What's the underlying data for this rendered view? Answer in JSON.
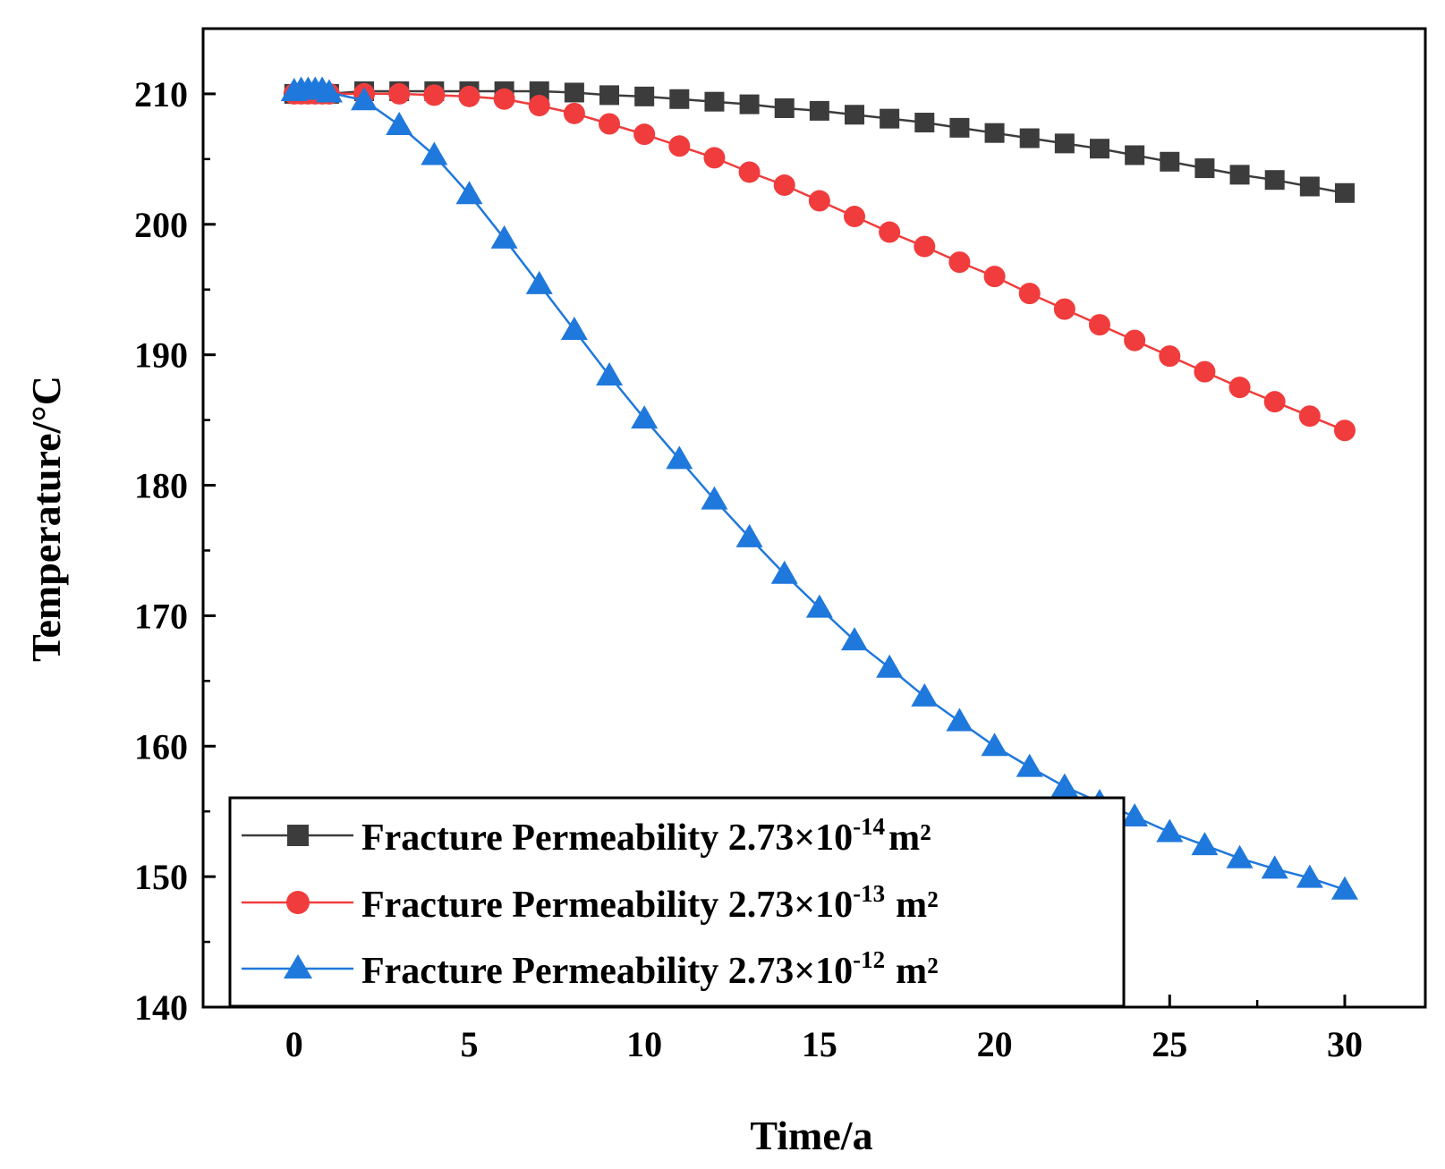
{
  "chart_data": {
    "type": "line",
    "title": "",
    "xlabel": "Time/a",
    "ylabel": "Temperature/°C",
    "xlim": [
      -2.6,
      32.3
    ],
    "ylim": [
      140,
      215
    ],
    "xticks": [
      0,
      5,
      10,
      15,
      20,
      25,
      30
    ],
    "yticks": [
      140,
      150,
      160,
      170,
      180,
      190,
      200,
      210
    ],
    "legend_position": "bottom-left",
    "series": [
      {
        "name": "Fracture Permeability 2.73×10-14 m²",
        "legend": {
          "prefix": "Fracture Permeability 2.73×10",
          "exp": "-14",
          "unit": "m²"
        },
        "color": "#3c3c3c",
        "marker": "square",
        "x": [
          0,
          0.2,
          0.4,
          0.6,
          0.8,
          1,
          2,
          3,
          4,
          5,
          6,
          7,
          8,
          9,
          10,
          11,
          12,
          13,
          14,
          15,
          16,
          17,
          18,
          19,
          20,
          21,
          22,
          23,
          24,
          25,
          26,
          27,
          28,
          29,
          30
        ],
        "y": [
          210,
          210,
          210,
          210,
          210,
          210,
          210.2,
          210.2,
          210.2,
          210.2,
          210.2,
          210.2,
          210.1,
          209.9,
          209.8,
          209.6,
          209.4,
          209.2,
          208.9,
          208.7,
          208.4,
          208.1,
          207.8,
          207.4,
          207.0,
          206.6,
          206.2,
          205.8,
          205.3,
          204.8,
          204.3,
          203.8,
          203.4,
          202.9,
          202.4
        ]
      },
      {
        "name": "Fracture Permeability 2.73×10-13 m²",
        "legend": {
          "prefix": "Fracture Permeability 2.73×10",
          "exp": "-13",
          "unit": "m²"
        },
        "color": "#f03c3c",
        "marker": "circle",
        "x": [
          0,
          0.2,
          0.4,
          0.6,
          0.8,
          1,
          2,
          3,
          4,
          5,
          6,
          7,
          8,
          9,
          10,
          11,
          12,
          13,
          14,
          15,
          16,
          17,
          18,
          19,
          20,
          21,
          22,
          23,
          24,
          25,
          26,
          27,
          28,
          29,
          30
        ],
        "y": [
          210,
          210,
          210,
          210,
          210,
          210,
          210.0,
          210.0,
          209.9,
          209.8,
          209.6,
          209.1,
          208.5,
          207.7,
          206.9,
          206.0,
          205.1,
          204.0,
          203.0,
          201.8,
          200.6,
          199.4,
          198.3,
          197.1,
          196.0,
          194.7,
          193.5,
          192.3,
          191.1,
          189.9,
          188.7,
          187.5,
          186.4,
          185.3,
          184.2
        ]
      },
      {
        "name": "Fracture Permeability 2.73×10-12 m²",
        "legend": {
          "prefix": "Fracture Permeability 2.73×10",
          "exp": "-12",
          "unit": "m²"
        },
        "color": "#1f78dc",
        "marker": "triangle",
        "x": [
          0,
          0.2,
          0.4,
          0.6,
          0.8,
          1,
          2,
          3,
          4,
          5,
          6,
          7,
          8,
          9,
          10,
          11,
          12,
          13,
          14,
          15,
          16,
          17,
          18,
          19,
          20,
          21,
          22,
          23,
          24,
          25,
          26,
          27,
          28,
          29,
          30
        ],
        "y": [
          210.2,
          210.3,
          210.3,
          210.3,
          210.3,
          210.1,
          209.5,
          207.6,
          205.3,
          202.3,
          198.9,
          195.4,
          191.9,
          188.4,
          185.1,
          182.0,
          178.9,
          176.0,
          173.2,
          170.6,
          168.1,
          166.0,
          163.8,
          161.9,
          160.0,
          158.4,
          156.9,
          155.7,
          154.6,
          153.4,
          152.4,
          151.4,
          150.6,
          149.9,
          149.0
        ]
      }
    ]
  }
}
